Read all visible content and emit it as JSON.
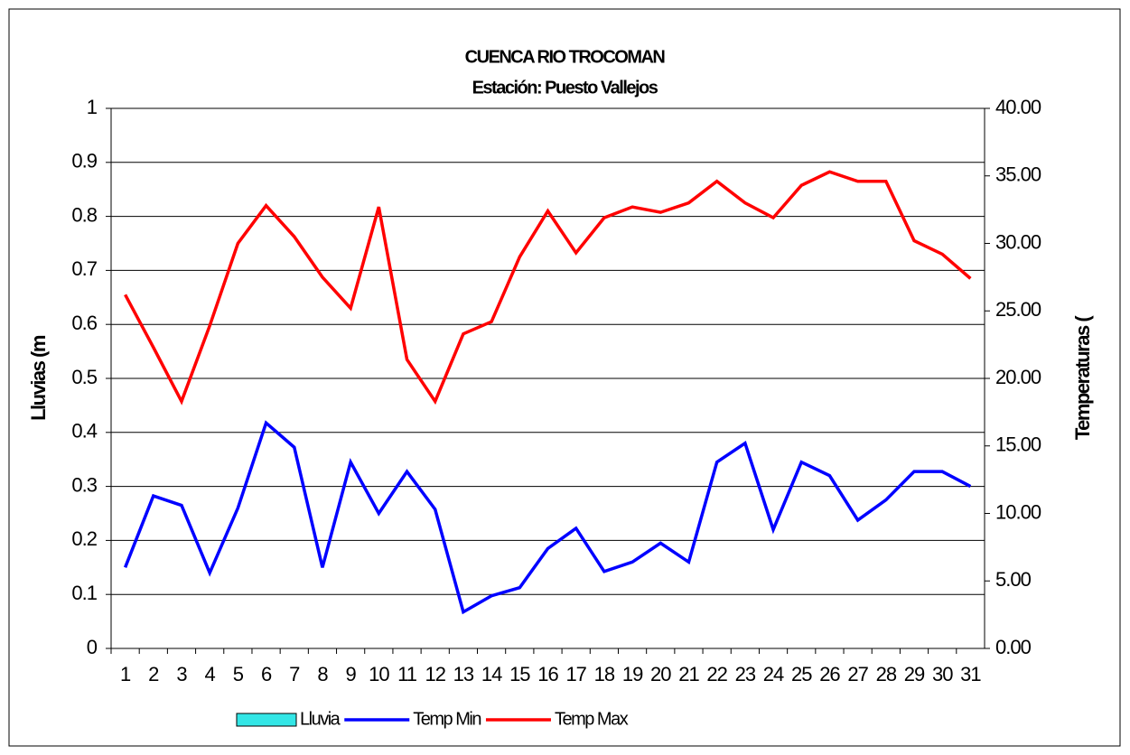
{
  "chart_data": {
    "type": "line",
    "title": "CUENCA RIO TROCOMAN",
    "subtitle": "Estación: Puesto Vallejos",
    "ylabel": "Lluvias (m",
    "y2label": "Temperaturas (",
    "categories": [
      "1",
      "2",
      "3",
      "4",
      "5",
      "6",
      "7",
      "8",
      "9",
      "10",
      "11",
      "12",
      "13",
      "14",
      "15",
      "16",
      "17",
      "18",
      "19",
      "20",
      "21",
      "22",
      "23",
      "24",
      "25",
      "26",
      "27",
      "28",
      "29",
      "30",
      "31"
    ],
    "ylim": [
      0,
      1
    ],
    "yticks": [
      0,
      0.1,
      0.2,
      0.3,
      0.4,
      0.5,
      0.6,
      0.7,
      0.8,
      0.9,
      1
    ],
    "y2lim": [
      0,
      40
    ],
    "y2ticks": [
      {
        "value": 0,
        "label": "0.00"
      },
      {
        "value": 5,
        "label": "5.00"
      },
      {
        "value": 10,
        "label": "10.00"
      },
      {
        "value": 15,
        "label": "15.00"
      },
      {
        "value": 20,
        "label": "20.00"
      },
      {
        "value": 25,
        "label": "25.00"
      },
      {
        "value": 30,
        "label": "30.00"
      },
      {
        "value": 35,
        "label": "35.00"
      },
      {
        "value": 40,
        "label": "40.00"
      }
    ],
    "grid": true,
    "legend": "bottom",
    "series": [
      {
        "name": "Lluvia",
        "type": "bar",
        "color": "#33e6e6",
        "values": [
          0,
          0,
          0,
          0,
          0,
          0,
          0,
          0,
          0,
          0,
          0,
          0,
          0,
          0,
          0,
          0,
          0,
          0,
          0,
          0,
          0,
          0,
          0,
          0,
          0,
          0,
          0,
          0,
          0,
          0,
          0
        ]
      },
      {
        "name": "Temp Min",
        "type": "line",
        "axis": "y2",
        "color": "#0000ff",
        "values": [
          6.0,
          11.3,
          10.6,
          5.6,
          10.4,
          16.7,
          14.9,
          6.0,
          13.8,
          10.0,
          13.1,
          10.3,
          2.7,
          3.9,
          4.5,
          7.4,
          8.9,
          5.7,
          6.4,
          7.8,
          6.4,
          13.8,
          15.2,
          8.8,
          13.8,
          12.8,
          9.5,
          11.0,
          13.1,
          13.1,
          12.0
        ]
      },
      {
        "name": "Temp Max",
        "type": "line",
        "axis": "y2",
        "color": "#ff0000",
        "values": [
          26.2,
          22.3,
          18.3,
          23.9,
          30.0,
          32.8,
          30.5,
          27.5,
          25.2,
          32.7,
          21.4,
          18.3,
          23.3,
          24.2,
          29.0,
          32.4,
          29.3,
          31.9,
          32.7,
          32.3,
          33.0,
          34.6,
          33.0,
          31.9,
          34.3,
          35.3,
          34.6,
          34.6,
          30.2,
          29.2,
          27.4
        ]
      }
    ]
  }
}
